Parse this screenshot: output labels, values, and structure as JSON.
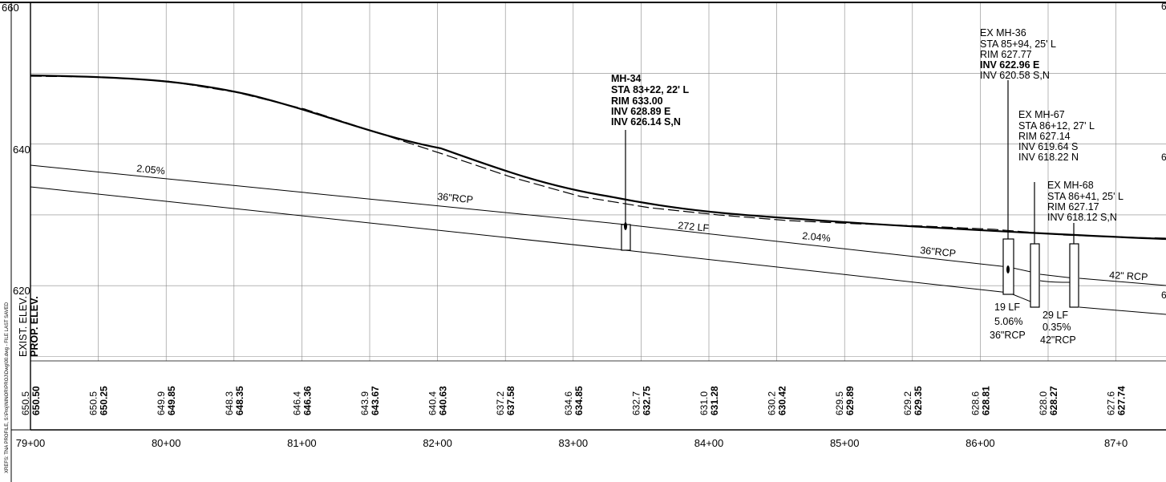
{
  "side_text": "XREFS: TNA PROFILE, S:\\Proj\\NINOR\\PROJ\\Dwg\\00.dwg - FILE LAST SAVED",
  "elev_labels": [
    "660",
    "640",
    "620"
  ],
  "right_edge_labels": [
    "6",
    "6",
    "6"
  ],
  "row_labels": {
    "exist": "EXIST. ELEV.",
    "prop": "PROP. ELEV."
  },
  "stations": [
    "79+00",
    "80+00",
    "81+00",
    "82+00",
    "83+00",
    "84+00",
    "85+00",
    "86+00",
    "87+0"
  ],
  "elevations": [
    {
      "exist": "650.5",
      "prop": "650.50"
    },
    {
      "exist": "650.5",
      "prop": "650.25"
    },
    {
      "exist": "649.9",
      "prop": "649.85"
    },
    {
      "exist": "648.3",
      "prop": "648.35"
    },
    {
      "exist": "646.4",
      "prop": "646.36"
    },
    {
      "exist": "643.9",
      "prop": "643.67"
    },
    {
      "exist": "640.4",
      "prop": "640.63"
    },
    {
      "exist": "637.2",
      "prop": "637.58"
    },
    {
      "exist": "634.6",
      "prop": "634.85"
    },
    {
      "exist": "632.7",
      "prop": "632.75"
    },
    {
      "exist": "631.0",
      "prop": "631.28"
    },
    {
      "exist": "630.2",
      "prop": "630.42"
    },
    {
      "exist": "629.5",
      "prop": "629.89"
    },
    {
      "exist": "629.2",
      "prop": "629.35"
    },
    {
      "exist": "628.6",
      "prop": "628.81"
    },
    {
      "exist": "628.0",
      "prop": "628.27"
    },
    {
      "exist": "627.6",
      "prop": "627.74"
    }
  ],
  "pipe_labels": {
    "slope_1": "2.05%",
    "pipe_1": "36\"RCP",
    "length_main": "272 LF",
    "slope_main": "2.04%",
    "pipe_main": "36\"RCP",
    "pipe_42": "42\" RCP",
    "seg19_len": "19 LF",
    "seg19_slope": "5.06%",
    "seg19_pipe": "36\"RCP",
    "seg29_len": "29 LF",
    "seg29_slope": "0.35%",
    "seg29_pipe": "42\"RCP"
  },
  "manholes": [
    {
      "name": "MH-34",
      "sta": "STA 83+22, 22' L",
      "rim": "RIM 633.00",
      "inv1": "INV 628.89 E",
      "inv2": "INV 626.14 S,N"
    },
    {
      "name": "EX MH-36",
      "sta": "STA 85+94, 25' L",
      "rim": "RIM 627.77",
      "inv1": "INV 622.96 E",
      "inv2": "INV 620.58 S,N"
    },
    {
      "name": "EX MH-67",
      "sta": "STA 86+12, 27' L",
      "rim": "RIM 627.14",
      "inv1": "INV 619.64 S",
      "inv2": "INV 618.22 N"
    },
    {
      "name": "EX MH-68",
      "sta": "STA 86+41, 25' L",
      "rim": "RIM 627.17",
      "inv1": "INV 618.12 S,N"
    }
  ]
}
